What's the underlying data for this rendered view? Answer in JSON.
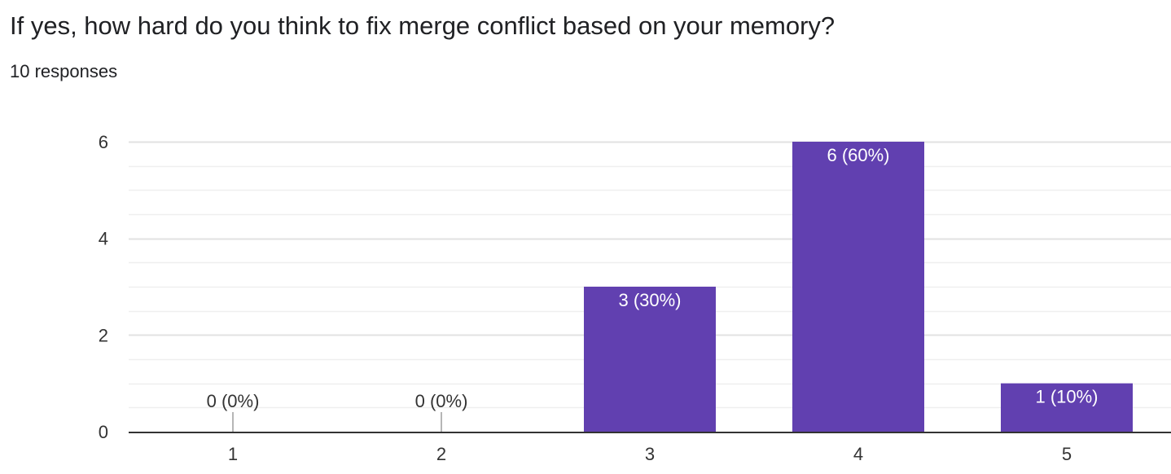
{
  "question": {
    "title": "If yes, how hard do you think to fix merge conflict based on your memory?",
    "responses": "10 responses"
  },
  "colors": {
    "bar": "#6140b0",
    "grid": "#e9e9e9",
    "axis": "#333333",
    "text": "#202124"
  },
  "chart_data": {
    "type": "bar",
    "categories": [
      "1",
      "2",
      "3",
      "4",
      "5"
    ],
    "values": [
      0,
      0,
      3,
      6,
      1
    ],
    "data_labels": [
      "0 (0%)",
      "0 (0%)",
      "3 (30%)",
      "6 (60%)",
      "1 (10%)"
    ],
    "yticks": [
      "0",
      "2",
      "4",
      "6"
    ],
    "ylim": [
      0,
      6
    ],
    "grid": true,
    "legend": false
  }
}
